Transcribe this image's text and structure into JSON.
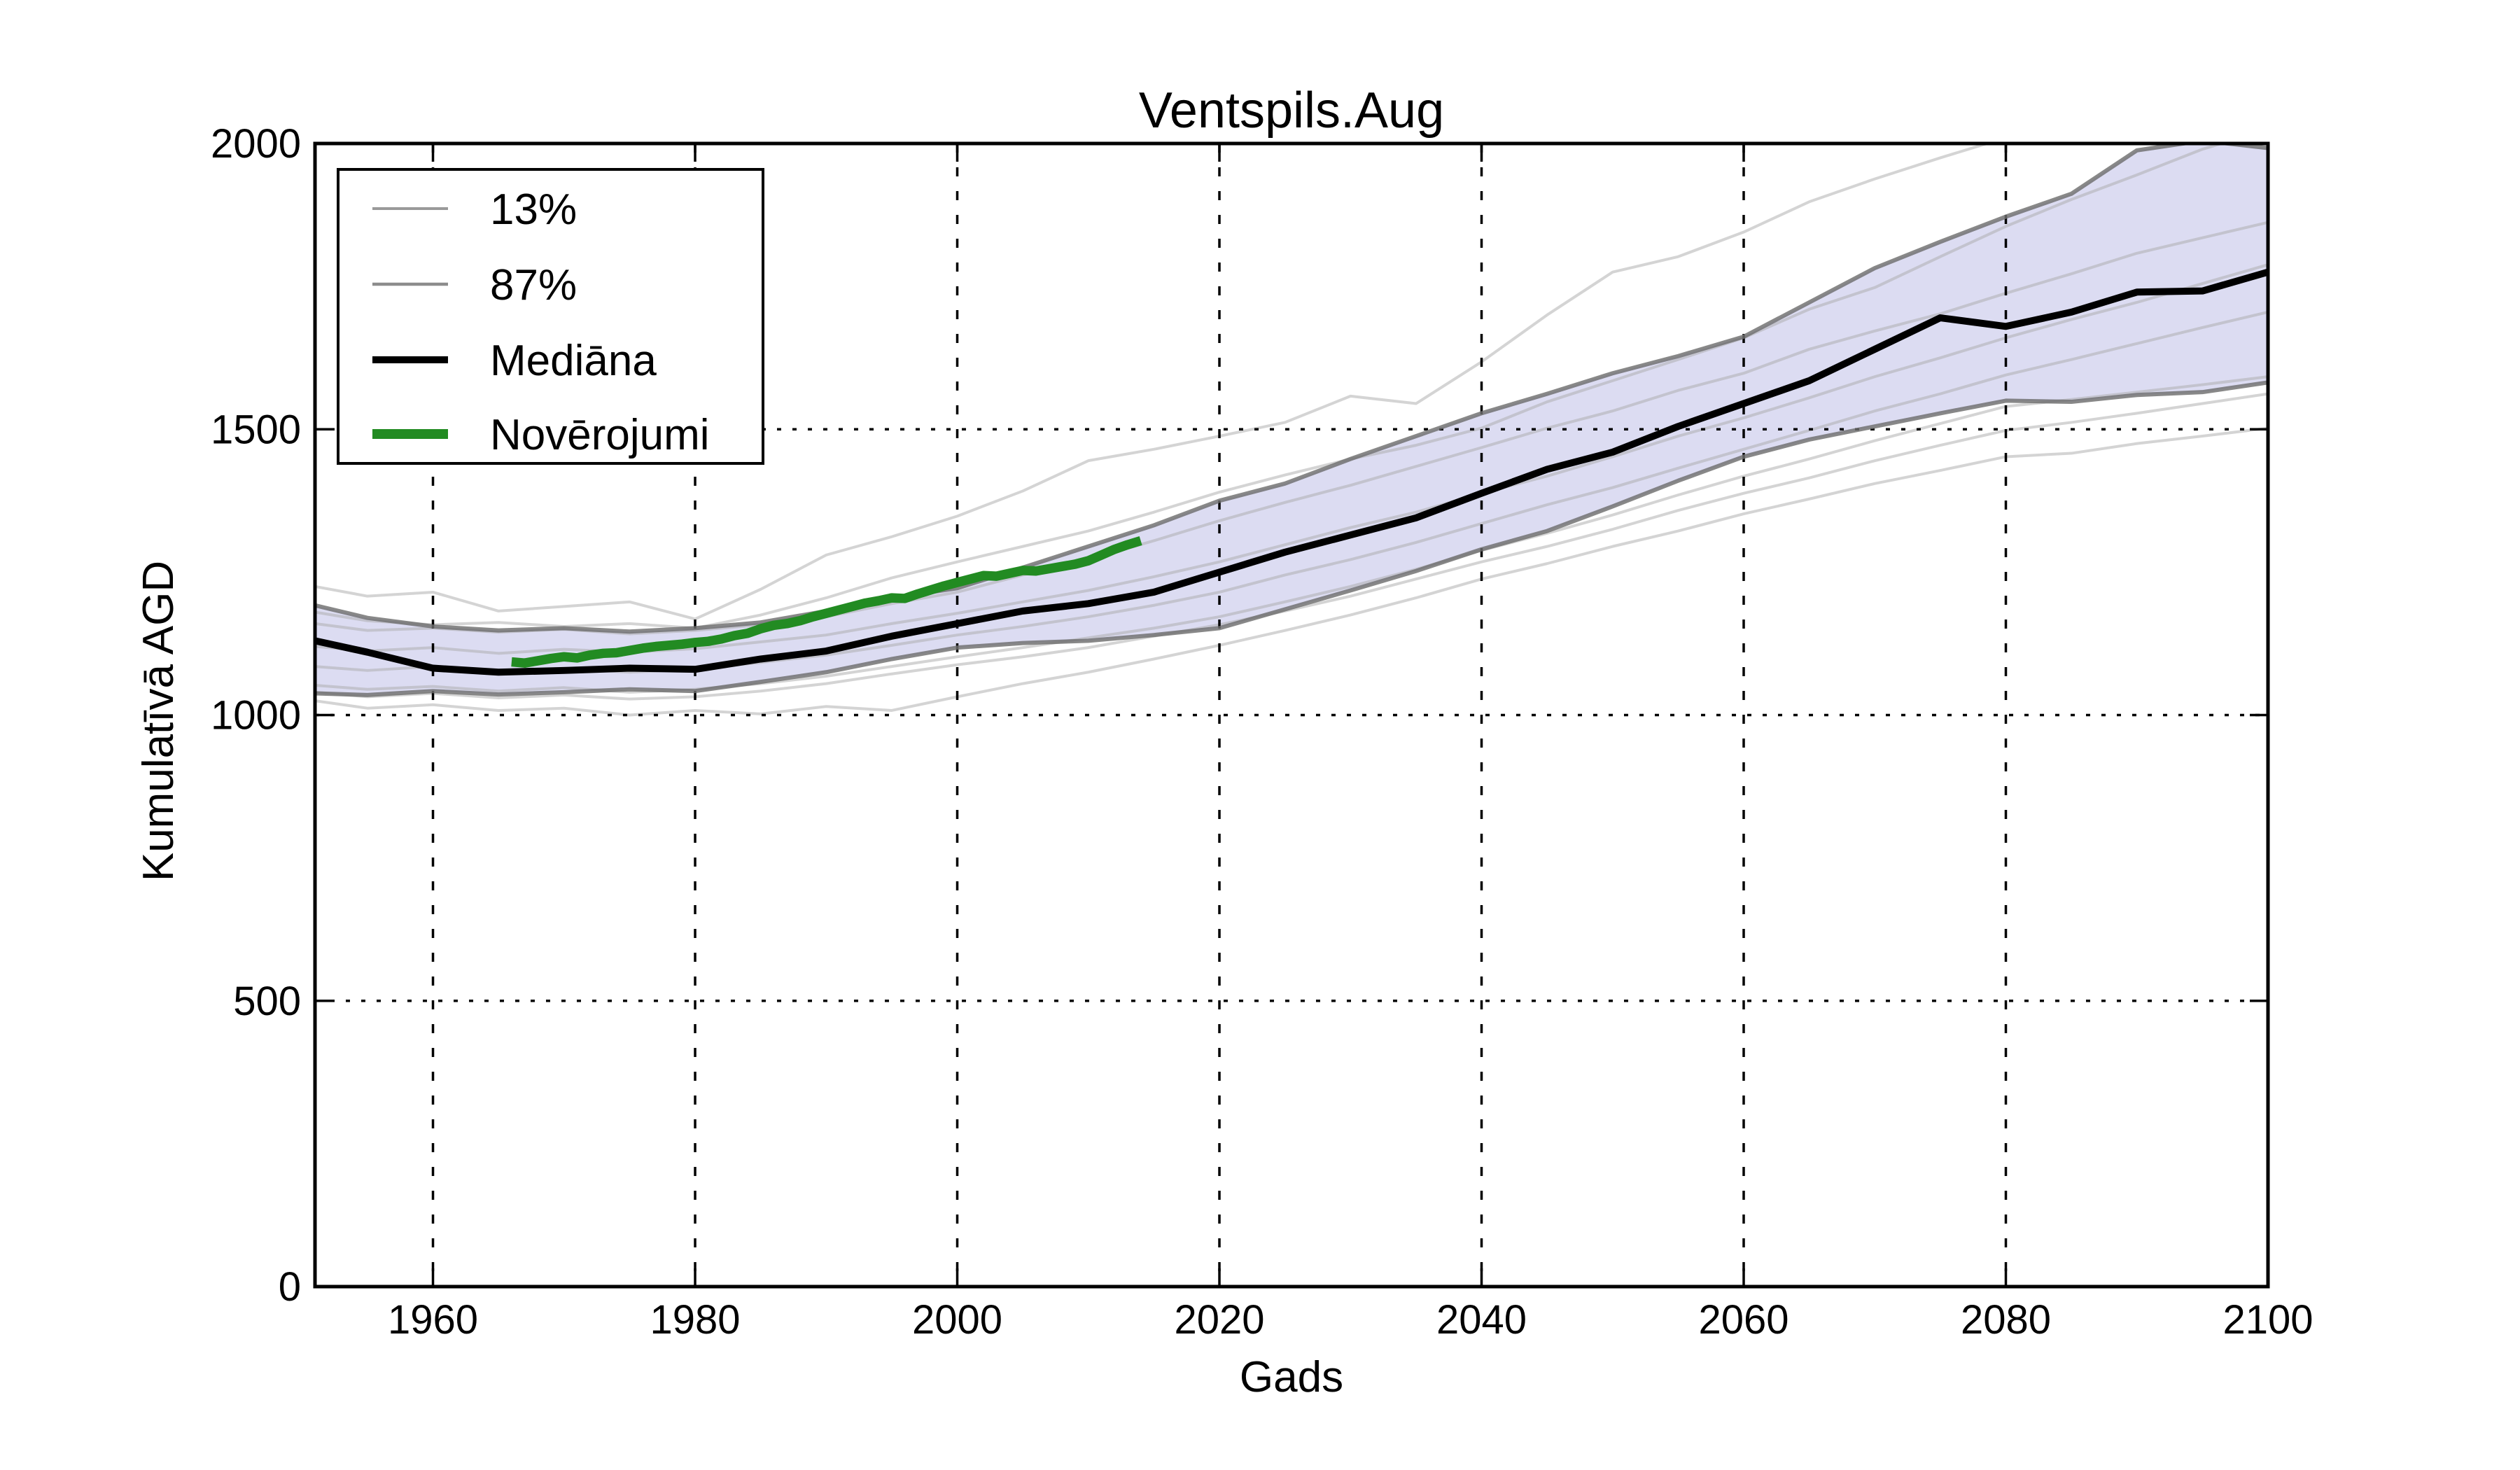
{
  "chart_data": {
    "type": "line",
    "title": "Ventspils.Aug",
    "xlabel": "Gads",
    "ylabel": "Kumulatīvā AGD",
    "xlim": [
      1951,
      2100
    ],
    "ylim": [
      0,
      2000
    ],
    "xticks": [
      1960,
      1980,
      2000,
      2020,
      2040,
      2060,
      2080,
      2100
    ],
    "yticks": [
      0,
      500,
      1000,
      1500,
      2000
    ],
    "grid": "dotted",
    "colors": {
      "band_fill": "#dcdcf2",
      "percentile_line": "#6e6e6e",
      "ensemble_line": "#aaaaaa",
      "median_line": "#000000",
      "observations_line": "#228b22",
      "grid_line": "#000000",
      "axis": "#000000"
    },
    "years": [
      1951,
      1955,
      1960,
      1965,
      1970,
      1975,
      1980,
      1985,
      1990,
      1995,
      2000,
      2005,
      2010,
      2015,
      2020,
      2025,
      2030,
      2035,
      2040,
      2045,
      2050,
      2055,
      2060,
      2065,
      2070,
      2075,
      2080,
      2085,
      2090,
      2095,
      2100
    ],
    "series": [
      {
        "name": "13%",
        "role": "percentile-lower",
        "values": [
          1038,
          1035,
          1042,
          1036,
          1040,
          1045,
          1042,
          1058,
          1075,
          1098,
          1118,
          1126,
          1130,
          1140,
          1152,
          1185,
          1218,
          1252,
          1290,
          1322,
          1365,
          1410,
          1452,
          1482,
          1505,
          1528,
          1550,
          1548,
          1560,
          1565,
          1582
        ]
      },
      {
        "name": "87%",
        "role": "percentile-upper",
        "values": [
          1192,
          1170,
          1155,
          1148,
          1152,
          1146,
          1152,
          1162,
          1182,
          1205,
          1222,
          1258,
          1295,
          1332,
          1375,
          1405,
          1448,
          1488,
          1528,
          1562,
          1598,
          1628,
          1662,
          1722,
          1782,
          1828,
          1872,
          1912,
          1988,
          2005,
          1992
        ]
      },
      {
        "name": "Mediāna",
        "role": "median",
        "values": [
          1130,
          1110,
          1082,
          1075,
          1078,
          1082,
          1080,
          1098,
          1112,
          1138,
          1160,
          1182,
          1195,
          1215,
          1250,
          1285,
          1315,
          1345,
          1388,
          1430,
          1460,
          1505,
          1545,
          1585,
          1640,
          1695,
          1680,
          1705,
          1740,
          1742,
          1775
        ]
      }
    ],
    "ensemble_members": [
      [
        1225,
        1208,
        1215,
        1182,
        1190,
        1198,
        1168,
        1220,
        1280,
        1312,
        1348,
        1392,
        1445,
        1465,
        1488,
        1512,
        1558,
        1545,
        1618,
        1700,
        1775,
        1802,
        1845,
        1898,
        1938,
        1975,
        2010,
        2050,
        2085,
        2110,
        2125
      ],
      [
        1180,
        1165,
        1158,
        1162,
        1155,
        1160,
        1152,
        1175,
        1205,
        1240,
        1268,
        1295,
        1322,
        1355,
        1390,
        1420,
        1448,
        1472,
        1502,
        1548,
        1585,
        1622,
        1660,
        1710,
        1748,
        1802,
        1855,
        1902,
        1945,
        1990,
        2025
      ],
      [
        1160,
        1148,
        1152,
        1145,
        1150,
        1142,
        1148,
        1158,
        1172,
        1195,
        1215,
        1245,
        1272,
        1305,
        1340,
        1372,
        1402,
        1435,
        1468,
        1502,
        1532,
        1568,
        1598,
        1640,
        1672,
        1702,
        1738,
        1772,
        1808,
        1835,
        1862
      ],
      [
        1120,
        1112,
        1118,
        1108,
        1115,
        1110,
        1116,
        1128,
        1140,
        1160,
        1178,
        1198,
        1218,
        1242,
        1268,
        1298,
        1328,
        1355,
        1388,
        1418,
        1452,
        1488,
        1520,
        1555,
        1592,
        1625,
        1660,
        1692,
        1722,
        1755,
        1788
      ],
      [
        1085,
        1078,
        1085,
        1075,
        1082,
        1075,
        1080,
        1092,
        1105,
        1122,
        1140,
        1155,
        1172,
        1192,
        1215,
        1245,
        1272,
        1302,
        1335,
        1368,
        1398,
        1432,
        1465,
        1498,
        1532,
        1562,
        1595,
        1622,
        1650,
        1678,
        1705
      ],
      [
        1052,
        1045,
        1050,
        1042,
        1048,
        1040,
        1045,
        1055,
        1068,
        1085,
        1102,
        1118,
        1135,
        1152,
        1172,
        1198,
        1225,
        1255,
        1288,
        1318,
        1350,
        1385,
        1418,
        1448,
        1480,
        1510,
        1540,
        1552,
        1565,
        1578,
        1592
      ],
      [
        1025,
        1012,
        1018,
        1008,
        1012,
        1000,
        1008,
        1002,
        1015,
        1008,
        1032,
        1055,
        1075,
        1098,
        1122,
        1148,
        1175,
        1205,
        1238,
        1265,
        1295,
        1322,
        1352,
        1378,
        1405,
        1428,
        1452,
        1458,
        1475,
        1488,
        1502
      ],
      [
        1040,
        1032,
        1038,
        1030,
        1035,
        1028,
        1032,
        1042,
        1055,
        1072,
        1088,
        1102,
        1118,
        1138,
        1158,
        1182,
        1208,
        1238,
        1268,
        1295,
        1325,
        1358,
        1388,
        1415,
        1445,
        1472,
        1498,
        1512,
        1528,
        1545,
        1562
      ]
    ],
    "observations": {
      "name": "Novērojumi",
      "years_start": 1966,
      "years_end": 2014,
      "values": [
        1093,
        1091,
        1095,
        1099,
        1102,
        1100,
        1105,
        1108,
        1109,
        1113,
        1117,
        1120,
        1122,
        1124,
        1127,
        1129,
        1133,
        1139,
        1143,
        1151,
        1157,
        1160,
        1165,
        1172,
        1178,
        1184,
        1190,
        1196,
        1200,
        1205,
        1204,
        1212,
        1219,
        1226,
        1232,
        1238,
        1244,
        1243,
        1248,
        1253,
        1252,
        1256,
        1260,
        1264,
        1270,
        1280,
        1290,
        1298,
        1305
      ]
    },
    "legend": {
      "position": "upper left",
      "entries": [
        {
          "label": "13%",
          "color": "#9a9a9a",
          "line_width": 4
        },
        {
          "label": "87%",
          "color": "#8c8c8c",
          "line_width": 4.5
        },
        {
          "label": "Mediāna",
          "color": "#000000",
          "line_width": 10
        },
        {
          "label": "Novērojumi",
          "color": "#228b22",
          "line_width": 14
        }
      ]
    }
  }
}
